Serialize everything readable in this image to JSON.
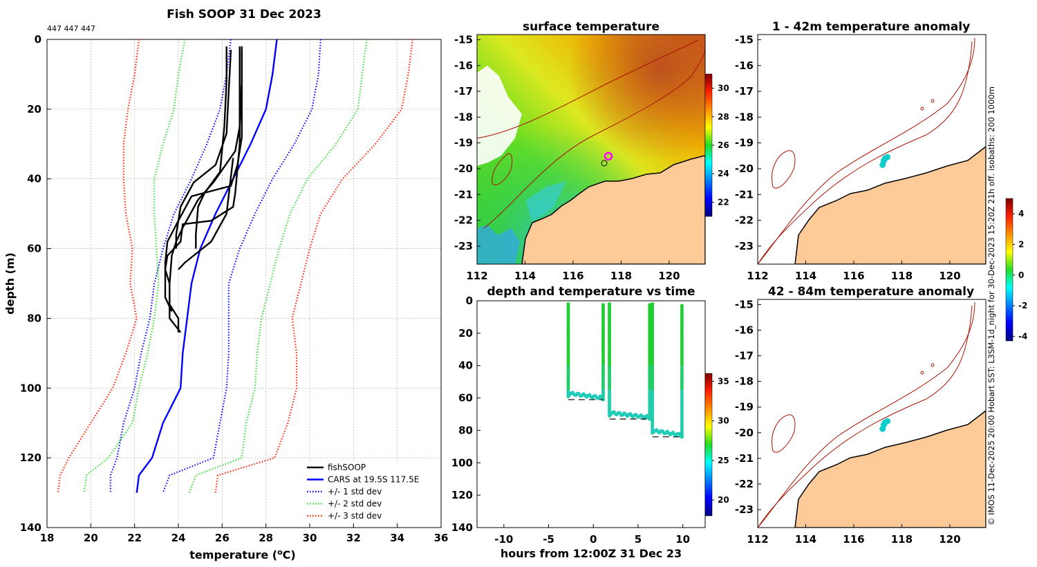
{
  "figure": {
    "main_title": "Fish SOOP 31 Dec 2023",
    "id_label": "447 447 447",
    "side_note": "© IMOS 11-Dec-2025 20:00 Hobart SST: L3SM-1d_night for 30-Dec-2023 15:20Z 21h off. isobaths: 200  1000m"
  },
  "colors": {
    "profile": "#000000",
    "cars": "#0000ff",
    "std1": "#0000ff",
    "std2": "#33dd33",
    "std3": "#ff2200",
    "land": "#fdca98",
    "isobath": "#aa1100",
    "marker_ring": "#ff00ff",
    "anom_marker": "#11cccc"
  },
  "chart_data": [
    {
      "id": "profile",
      "type": "line",
      "title": "Fish SOOP 31 Dec 2023",
      "xlabel": "temperature (°C)",
      "ylabel": "depth (m)",
      "xlim": [
        18,
        36
      ],
      "ylim": [
        0,
        140
      ],
      "y_reversed": true,
      "xticks": [
        "18",
        "20",
        "22",
        "24",
        "26",
        "28",
        "30",
        "32",
        "34",
        "36"
      ],
      "yticks": [
        "0",
        "20",
        "40",
        "60",
        "80",
        "100",
        "120",
        "140"
      ],
      "grid": true,
      "legend": [
        {
          "label": "fishSOOP",
          "style": "solid",
          "color": "#000000"
        },
        {
          "label": "CARS at 19.5S 117.5E",
          "style": "solid",
          "color": "#0000ff"
        },
        {
          "label": "+/- 1 std dev",
          "style": "dotted",
          "color": "#0000ff"
        },
        {
          "label": "+/- 2 std dev",
          "style": "dotted",
          "color": "#33dd33"
        },
        {
          "label": "+/- 3 std dev",
          "style": "dotted",
          "color": "#ff2200"
        }
      ],
      "legend_loc": "bottom-right",
      "series": [
        {
          "name": "CARS at 19.5S 117.5E",
          "color": "#0000ff",
          "style": "solid",
          "points": [
            [
              28.5,
              0
            ],
            [
              28.3,
              10
            ],
            [
              28.0,
              20
            ],
            [
              27.3,
              30
            ],
            [
              26.5,
              40
            ],
            [
              25.7,
              50
            ],
            [
              25.0,
              60
            ],
            [
              24.6,
              70
            ],
            [
              24.4,
              80
            ],
            [
              24.2,
              90
            ],
            [
              24.1,
              100
            ],
            [
              23.3,
              110
            ],
            [
              22.8,
              120
            ],
            [
              22.2,
              125
            ],
            [
              22.1,
              130
            ]
          ]
        },
        {
          "name": "+1 std",
          "color": "#0000ff",
          "style": "dotted",
          "points": [
            [
              30.5,
              0
            ],
            [
              30.4,
              10
            ],
            [
              30.1,
              20
            ],
            [
              29.3,
              30
            ],
            [
              28.3,
              40
            ],
            [
              27.5,
              50
            ],
            [
              26.8,
              60
            ],
            [
              26.3,
              70
            ],
            [
              26.3,
              80
            ],
            [
              26.3,
              90
            ],
            [
              26.2,
              100
            ],
            [
              25.9,
              110
            ],
            [
              25.6,
              120
            ],
            [
              23.6,
              125
            ],
            [
              23.3,
              130
            ]
          ]
        },
        {
          "name": "-1 std",
          "color": "#0000ff",
          "style": "dotted",
          "points": [
            [
              26.4,
              0
            ],
            [
              26.2,
              10
            ],
            [
              25.9,
              20
            ],
            [
              25.3,
              30
            ],
            [
              24.6,
              40
            ],
            [
              23.8,
              50
            ],
            [
              23.3,
              60
            ],
            [
              22.9,
              70
            ],
            [
              22.7,
              80
            ],
            [
              22.3,
              90
            ],
            [
              22.0,
              100
            ],
            [
              21.5,
              110
            ],
            [
              21.2,
              120
            ],
            [
              20.9,
              125
            ],
            [
              20.9,
              130
            ]
          ]
        },
        {
          "name": "+2 std",
          "color": "#33dd33",
          "style": "dotted",
          "points": [
            [
              32.6,
              0
            ],
            [
              32.4,
              10
            ],
            [
              32.2,
              20
            ],
            [
              31.2,
              30
            ],
            [
              29.9,
              40
            ],
            [
              29.1,
              50
            ],
            [
              28.6,
              60
            ],
            [
              28.2,
              70
            ],
            [
              27.8,
              80
            ],
            [
              27.6,
              90
            ],
            [
              27.5,
              100
            ],
            [
              27.1,
              110
            ],
            [
              26.9,
              120
            ],
            [
              24.8,
              125
            ],
            [
              24.5,
              130
            ]
          ]
        },
        {
          "name": "-2 std",
          "color": "#33dd33",
          "style": "dotted",
          "points": [
            [
              24.3,
              0
            ],
            [
              24.0,
              10
            ],
            [
              23.8,
              20
            ],
            [
              23.3,
              30
            ],
            [
              22.9,
              40
            ],
            [
              22.9,
              50
            ],
            [
              23.0,
              60
            ],
            [
              23.1,
              70
            ],
            [
              22.9,
              80
            ],
            [
              22.6,
              90
            ],
            [
              22.2,
              100
            ],
            [
              21.9,
              110
            ],
            [
              20.8,
              120
            ],
            [
              19.8,
              125
            ],
            [
              19.7,
              130
            ]
          ]
        },
        {
          "name": "+3 std",
          "color": "#ff2200",
          "style": "dotted",
          "points": [
            [
              34.7,
              0
            ],
            [
              34.5,
              10
            ],
            [
              34.2,
              20
            ],
            [
              33.0,
              30
            ],
            [
              31.5,
              40
            ],
            [
              30.5,
              50
            ],
            [
              30.0,
              60
            ],
            [
              29.6,
              70
            ],
            [
              29.2,
              80
            ],
            [
              29.4,
              90
            ],
            [
              29.4,
              100
            ],
            [
              29.0,
              110
            ],
            [
              28.4,
              120
            ],
            [
              25.8,
              125
            ],
            [
              25.7,
              130
            ]
          ]
        },
        {
          "name": "-3 std",
          "color": "#ff2200",
          "style": "dotted",
          "points": [
            [
              22.2,
              0
            ],
            [
              22.0,
              10
            ],
            [
              21.7,
              20
            ],
            [
              21.5,
              30
            ],
            [
              21.5,
              40
            ],
            [
              21.6,
              50
            ],
            [
              21.9,
              60
            ],
            [
              21.8,
              70
            ],
            [
              22.1,
              80
            ],
            [
              21.6,
              90
            ],
            [
              21.0,
              100
            ],
            [
              20.0,
              110
            ],
            [
              19.0,
              120
            ],
            [
              18.6,
              125
            ],
            [
              18.5,
              130
            ]
          ]
        },
        {
          "name": "fishSOOP cast 1",
          "color": "#000000",
          "style": "solid",
          "points": [
            [
              26.2,
              2
            ],
            [
              26.2,
              12
            ],
            [
              26.1,
              25
            ],
            [
              25.9,
              38
            ],
            [
              25.2,
              44
            ],
            [
              24.9,
              48
            ],
            [
              24.8,
              56
            ],
            [
              24.8,
              60
            ]
          ]
        },
        {
          "name": "fishSOOP cast 2",
          "color": "#000000",
          "style": "solid",
          "points": [
            [
              26.4,
              3
            ],
            [
              26.3,
              15
            ],
            [
              26.2,
              27
            ],
            [
              25.7,
              36
            ],
            [
              24.7,
              41
            ],
            [
              24.1,
              48
            ],
            [
              23.9,
              56
            ],
            [
              23.9,
              60
            ]
          ]
        },
        {
          "name": "fishSOOP cast 3",
          "color": "#000000",
          "style": "solid",
          "points": [
            [
              26.9,
              2
            ],
            [
              26.9,
              12
            ],
            [
              26.8,
              25
            ],
            [
              26.6,
              32
            ],
            [
              25.6,
              41
            ],
            [
              24.9,
              46
            ],
            [
              24.2,
              54
            ],
            [
              23.9,
              58
            ],
            [
              23.7,
              62
            ],
            [
              23.6,
              70
            ],
            [
              23.6,
              80
            ],
            [
              24.1,
              84
            ]
          ]
        },
        {
          "name": "fishSOOP cast 4",
          "color": "#000000",
          "style": "solid",
          "points": [
            [
              26.9,
              3
            ],
            [
              26.9,
              13
            ],
            [
              26.9,
              24
            ],
            [
              26.9,
              28
            ],
            [
              26.7,
              36
            ],
            [
              26.4,
              42
            ],
            [
              24.6,
              45
            ],
            [
              24.0,
              52
            ],
            [
              23.5,
              58
            ],
            [
              23.4,
              64
            ],
            [
              23.4,
              74
            ],
            [
              23.7,
              78
            ]
          ]
        },
        {
          "name": "fishSOOP cast 5",
          "color": "#000000",
          "style": "solid",
          "points": [
            [
              26.8,
              2
            ],
            [
              26.8,
              14
            ],
            [
              26.8,
              30
            ],
            [
              26.6,
              44
            ],
            [
              26.5,
              48
            ],
            [
              25.5,
              52
            ],
            [
              24.2,
              53
            ],
            [
              24.1,
              58
            ],
            [
              23.5,
              62
            ],
            [
              23.4,
              66
            ],
            [
              23.6,
              70
            ],
            [
              23.6,
              76
            ],
            [
              24.0,
              80
            ],
            [
              24.0,
              84
            ]
          ]
        },
        {
          "name": "fishSOOP cast 6",
          "color": "#000000",
          "style": "solid",
          "points": [
            [
              26.5,
              34
            ],
            [
              26.2,
              50
            ],
            [
              25.5,
              58
            ],
            [
              24.3,
              64
            ],
            [
              24.0,
              66
            ]
          ]
        }
      ]
    },
    {
      "id": "sst_map",
      "type": "heatmap",
      "title": "surface temperature",
      "xticks": [
        "112",
        "114",
        "116",
        "118",
        "120"
      ],
      "yticks": [
        "-15",
        "-16",
        "-17",
        "-18",
        "-19",
        "-20",
        "-21",
        "-22",
        "-23"
      ],
      "xlim": [
        112,
        121.5
      ],
      "ylim": [
        -23.7,
        -14.8
      ],
      "colorbar": {
        "range": [
          21,
          31
        ],
        "ticks": [
          "22",
          "24",
          "26",
          "28",
          "30"
        ]
      },
      "vessel_position": [
        117.5,
        -19.5
      ]
    },
    {
      "id": "depth_time",
      "type": "scatter",
      "title": "depth and temperature vs time",
      "xlabel": "hours from 12:00Z 31 Dec 23",
      "xlim": [
        -13,
        12.5
      ],
      "ylim": [
        0,
        140
      ],
      "y_reversed": true,
      "xticks": [
        "-10",
        "-5",
        "0",
        "5",
        "10"
      ],
      "yticks": [
        "0",
        "20",
        "40",
        "60",
        "80",
        "100",
        "120",
        "140"
      ],
      "colorbar": {
        "range": [
          18,
          36
        ],
        "ticks": [
          "20",
          "25",
          "30",
          "35"
        ]
      },
      "tows": [
        {
          "t_start": -2.8,
          "t_end": 1.1,
          "bottom_depth": 61
        },
        {
          "t_start": 1.8,
          "t_end": 6.3,
          "bottom_depth": 73
        },
        {
          "t_start": 6.6,
          "t_end": 9.9,
          "bottom_depth": 84
        }
      ]
    },
    {
      "id": "anom_shallow",
      "type": "scatter",
      "title": "1 - 42m temperature anomaly",
      "xticks": [
        "112",
        "114",
        "116",
        "118",
        "120"
      ],
      "yticks": [
        "-15",
        "-16",
        "-17",
        "-18",
        "-19",
        "-20",
        "-21",
        "-22",
        "-23"
      ],
      "xlim": [
        112,
        121.5
      ],
      "ylim": [
        -23.7,
        -14.8
      ],
      "anomaly_points": [
        [
          117.2,
          -19.85
        ],
        [
          117.25,
          -19.7
        ],
        [
          117.4,
          -19.55
        ],
        [
          117.3,
          -19.6
        ]
      ]
    },
    {
      "id": "anom_deep",
      "type": "scatter",
      "title": "42 - 84m temperature anomaly",
      "xticks": [
        "112",
        "114",
        "116",
        "118",
        "120"
      ],
      "yticks": [
        "-15",
        "-16",
        "-17",
        "-18",
        "-19",
        "-20",
        "-21",
        "-22",
        "-23"
      ],
      "xlim": [
        112,
        121.5
      ],
      "ylim": [
        -23.7,
        -14.8
      ],
      "anomaly_points": [
        [
          117.2,
          -19.85
        ],
        [
          117.25,
          -19.7
        ],
        [
          117.4,
          -19.55
        ],
        [
          117.3,
          -19.6
        ]
      ],
      "colorbar": {
        "range": [
          -4.3,
          5
        ],
        "ticks": [
          "4",
          "2",
          "0",
          "-2",
          "-4"
        ]
      }
    }
  ]
}
